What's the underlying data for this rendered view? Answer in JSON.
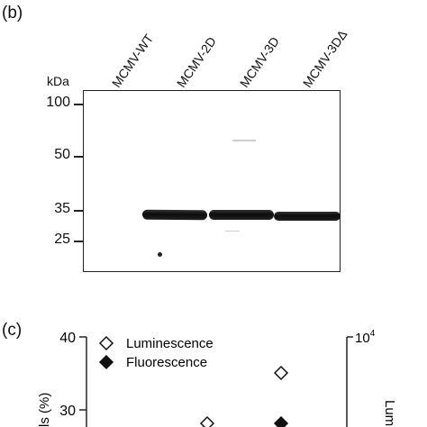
{
  "panel_b": {
    "label": "(b)",
    "lanes": [
      "MCMV-WT",
      "MCMV-2D",
      "MCMV-3D",
      "MCMV-3DΔ"
    ],
    "unit": "kDa",
    "markers": [
      "100",
      "50",
      "35",
      "25"
    ]
  },
  "panel_c": {
    "label": "(c)",
    "legend": [
      {
        "label": "Luminescence",
        "marker": "open-diamond"
      },
      {
        "label": "Fluorescence",
        "marker": "filled-diamond"
      }
    ],
    "y_left_ticks": [
      "40",
      "30"
    ],
    "y_left_label_partial": "ls (%)",
    "y_right_tick_base": "10",
    "y_right_tick_exp": "4",
    "y_right_label_partial": "Lum"
  }
}
